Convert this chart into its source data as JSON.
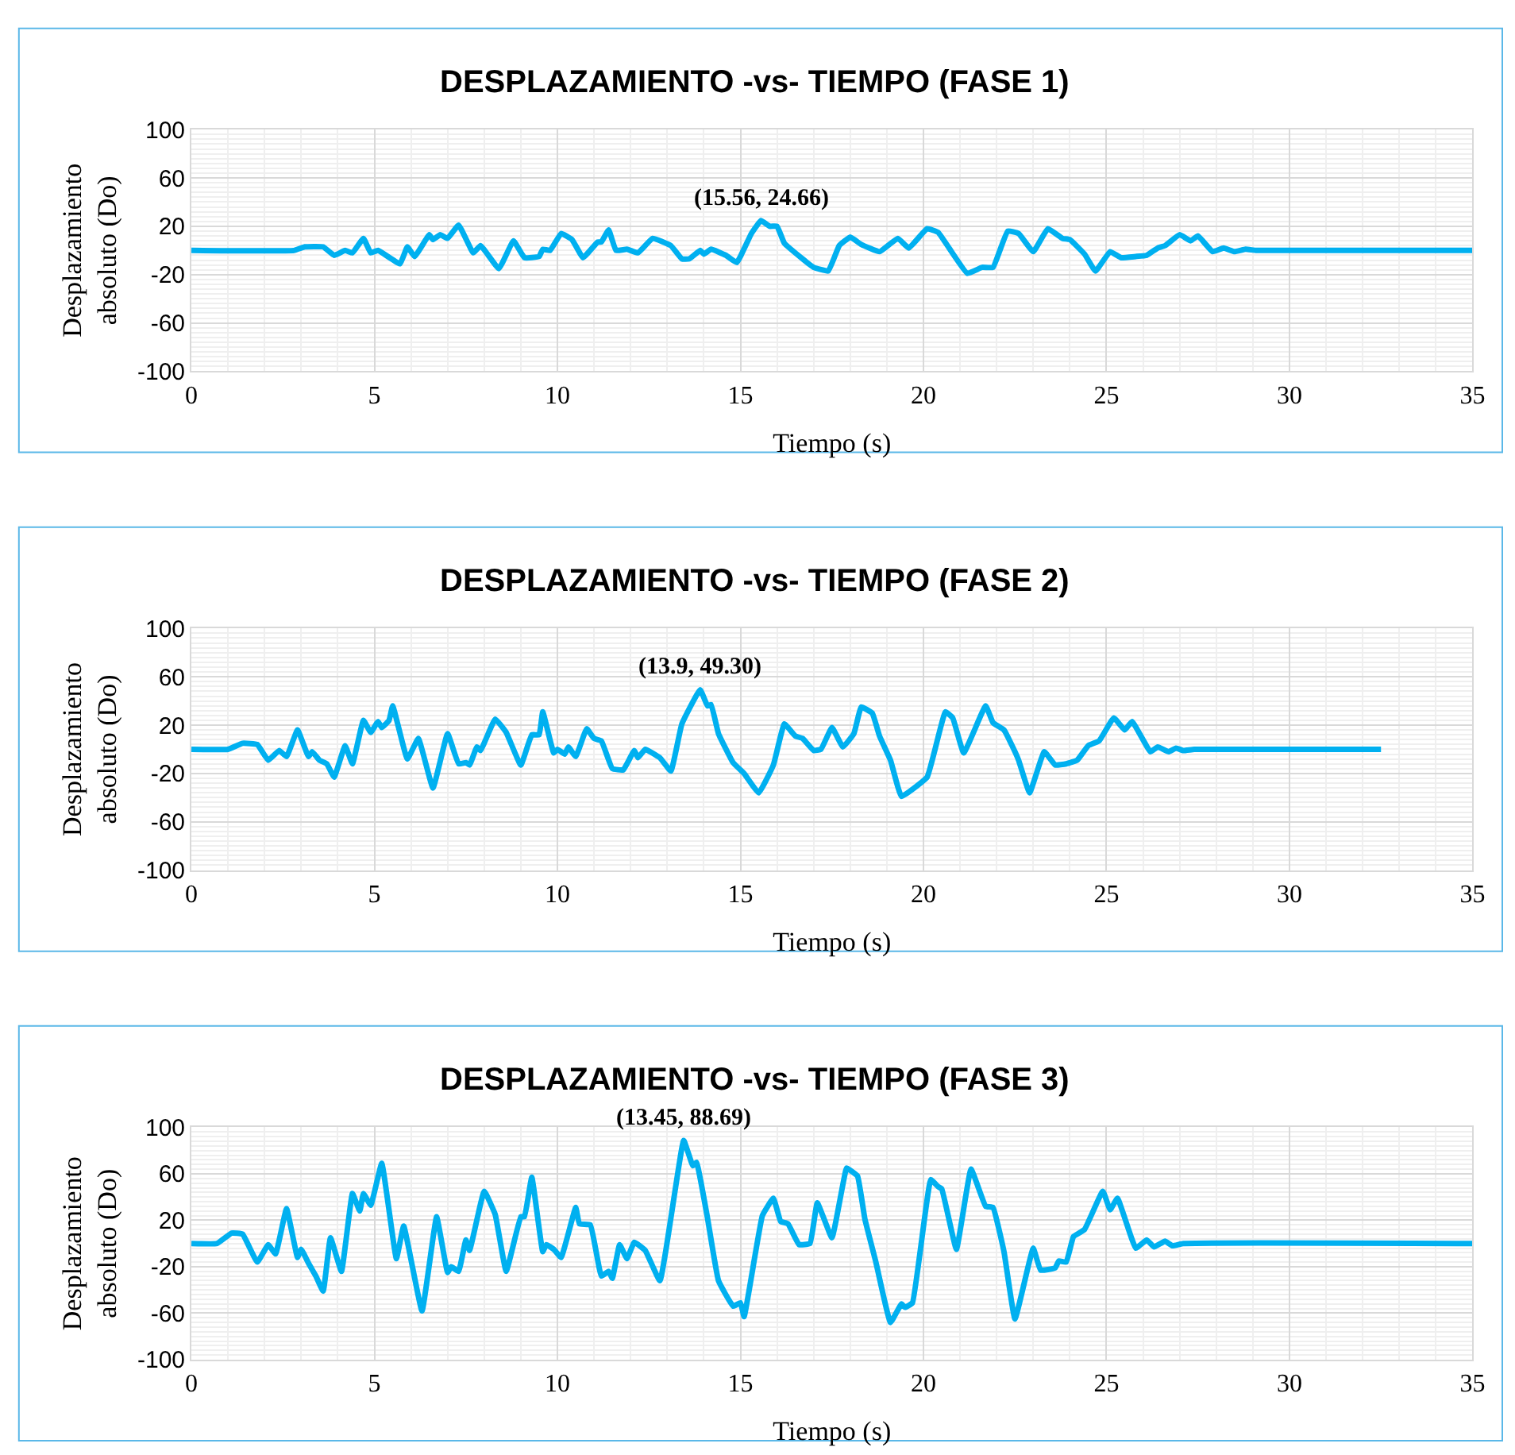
{
  "chart_data": [
    {
      "type": "line",
      "title": "DESPLAZAMIENTO -vs- TIEMPO (FASE 1)",
      "xlabel": "Tiempo (s)",
      "ylabel": "Desplazamiento absoluto (Do)",
      "xlim": [
        0,
        35
      ],
      "xticks": [
        0,
        5,
        10,
        15,
        20,
        25,
        30,
        35
      ],
      "ylim": [
        -100,
        100
      ],
      "yticks": [
        100,
        60,
        20,
        -20,
        -60,
        -100
      ],
      "grid": true,
      "marker": "none",
      "line_style": "solid",
      "annotations": [
        {
          "text": "(15.56, 24.66)",
          "x": 15.56,
          "y": 24.66
        }
      ],
      "series": [
        {
          "color": "#00b0f0",
          "x": [
            0,
            2.8,
            3.1,
            3.6,
            3.9,
            4.2,
            4.4,
            4.7,
            4.9,
            5.1,
            5.7,
            5.9,
            6.1,
            6.5,
            6.6,
            6.8,
            7.0,
            7.3,
            7.7,
            7.9,
            8.4,
            8.8,
            9.1,
            9.5,
            9.6,
            9.8,
            10.1,
            10.4,
            10.7,
            11.1,
            11.2,
            11.4,
            11.6,
            11.9,
            12.2,
            12.6,
            13.1,
            13.4,
            13.6,
            13.9,
            14.0,
            14.2,
            14.6,
            14.9,
            15.3,
            15.56,
            15.8,
            16.0,
            16.2,
            16.7,
            17.0,
            17.4,
            17.7,
            18.0,
            18.3,
            18.8,
            19.3,
            19.6,
            20.1,
            20.4,
            20.7,
            21.2,
            21.6,
            21.9,
            22.3,
            22.6,
            23.0,
            23.4,
            23.8,
            24.0,
            24.4,
            24.7,
            25.1,
            25.4,
            25.8,
            26.1,
            26.4,
            26.6,
            27.0,
            27.3,
            27.5,
            27.9,
            28.2,
            28.5,
            28.8,
            29.1,
            35
          ],
          "values": [
            0,
            0,
            3,
            3,
            -4,
            0,
            -2,
            10,
            -2,
            0,
            -11,
            3,
            -5,
            13,
            9,
            13,
            10,
            21,
            -2,
            4,
            -15,
            8,
            -6,
            -5,
            1,
            0,
            14,
            9,
            -6,
            7,
            7,
            17,
            0,
            1,
            -2,
            10,
            4,
            -7,
            -7,
            0,
            -3,
            1,
            -4,
            -10,
            14,
            24.66,
            20,
            20,
            6,
            -7,
            -14,
            -17,
            4,
            11,
            5,
            -1,
            10,
            2,
            18,
            15,
            2,
            -19,
            -14,
            -14,
            16,
            14,
            -1,
            18,
            10,
            9,
            -3,
            -17,
            -1,
            -6,
            -5,
            -4,
            2,
            4,
            13,
            8,
            12,
            -1,
            2,
            -1,
            1,
            0,
            0
          ]
        }
      ]
    },
    {
      "type": "line",
      "title": "DESPLAZAMIENTO -vs- TIEMPO (FASE 2)",
      "xlabel": "Tiempo (s)",
      "ylabel": "Desplazamiento absoluto (Do)",
      "xlim": [
        0,
        35
      ],
      "xticks": [
        0,
        5,
        10,
        15,
        20,
        25,
        30,
        35
      ],
      "ylim": [
        -100,
        100
      ],
      "yticks": [
        100,
        60,
        20,
        -20,
        -60,
        -100
      ],
      "grid": true,
      "marker": "none",
      "line_style": "solid",
      "annotations": [
        {
          "text": "(13.9, 49.30)",
          "x": 13.9,
          "y": 49.3
        }
      ],
      "series": [
        {
          "color": "#00b0f0",
          "x": [
            0,
            1.0,
            1.4,
            1.8,
            2.1,
            2.4,
            2.6,
            2.9,
            3.2,
            3.3,
            3.5,
            3.7,
            3.9,
            4.2,
            4.4,
            4.7,
            4.9,
            5.1,
            5.2,
            5.4,
            5.5,
            5.9,
            6.2,
            6.6,
            7.0,
            7.3,
            7.5,
            7.6,
            7.8,
            7.9,
            8.3,
            8.6,
            9.0,
            9.3,
            9.5,
            9.6,
            9.9,
            10.0,
            10.2,
            10.3,
            10.5,
            10.8,
            11.0,
            11.2,
            11.5,
            11.8,
            12.1,
            12.2,
            12.4,
            12.8,
            13.1,
            13.4,
            13.9,
            14.1,
            14.2,
            14.4,
            14.8,
            15.1,
            15.5,
            15.9,
            16.2,
            16.5,
            16.7,
            17.0,
            17.2,
            17.5,
            17.8,
            18.1,
            18.3,
            18.6,
            18.8,
            19.1,
            19.4,
            20.1,
            20.3,
            20.6,
            20.8,
            21.1,
            21.7,
            21.9,
            22.2,
            22.5,
            22.6,
            22.9,
            23.3,
            23.6,
            23.9,
            24.2,
            24.5,
            24.8,
            25.2,
            25.5,
            25.7,
            26.2,
            26.4,
            26.7,
            26.9,
            27.1,
            27.4,
            32.5
          ],
          "values": [
            0,
            0,
            5,
            4,
            -9,
            -1,
            -6,
            16,
            -6,
            -2,
            -9,
            -12,
            -23,
            3,
            -12,
            24,
            14,
            23,
            18,
            24,
            36,
            -8,
            9,
            -32,
            13,
            -12,
            -11,
            -13,
            2,
            -1,
            25,
            14,
            -13,
            12,
            12,
            31,
            -3,
            0,
            -4,
            2,
            -6,
            17,
            9,
            7,
            -16,
            -17,
            -1,
            -7,
            0,
            -7,
            -18,
            21,
            49.3,
            36,
            37,
            13,
            -11,
            -20,
            -36,
            -13,
            21,
            11,
            9,
            -1,
            0,
            18,
            2,
            13,
            35,
            30,
            11,
            -9,
            -39,
            -23,
            -2,
            31,
            26,
            -3,
            36,
            22,
            16,
            -2,
            -9,
            -36,
            -2,
            -13,
            -12,
            -9,
            3,
            7,
            26,
            16,
            23,
            -2,
            2,
            -2,
            1,
            -1,
            0,
            0
          ]
        }
      ]
    },
    {
      "type": "line",
      "title": "DESPLAZAMIENTO -vs- TIEMPO (FASE 3)",
      "xlabel": "Tiempo (s)",
      "ylabel": "Desplazamiento absoluto (Do)",
      "xlim": [
        0,
        35
      ],
      "xticks": [
        0,
        5,
        10,
        15,
        20,
        25,
        30,
        35
      ],
      "ylim": [
        -100,
        100
      ],
      "yticks": [
        100,
        60,
        20,
        -20,
        -60,
        -100
      ],
      "grid": true,
      "marker": "none",
      "line_style": "solid",
      "annotations": [
        {
          "text": "(13.45, 88.69)",
          "x": 13.45,
          "y": 88.69
        }
      ],
      "series": [
        {
          "color": "#00b0f0",
          "x": [
            0,
            0.7,
            1.1,
            1.4,
            1.8,
            2.1,
            2.3,
            2.6,
            2.9,
            3.0,
            3.2,
            3.4,
            3.6,
            3.8,
            4.1,
            4.4,
            4.6,
            4.7,
            4.9,
            5.2,
            5.6,
            5.8,
            6.3,
            6.7,
            7.0,
            7.1,
            7.3,
            7.5,
            7.6,
            8.0,
            8.3,
            8.6,
            9.0,
            9.1,
            9.3,
            9.6,
            9.7,
            9.9,
            10.1,
            10.5,
            10.6,
            10.9,
            11.2,
            11.4,
            11.5,
            11.7,
            11.9,
            12.1,
            12.4,
            12.8,
            13.45,
            13.7,
            13.8,
            14.1,
            14.4,
            14.8,
            15.0,
            15.1,
            15.6,
            15.9,
            16.1,
            16.3,
            16.6,
            16.9,
            17.1,
            17.5,
            17.9,
            18.0,
            18.2,
            18.4,
            18.7,
            19.1,
            19.4,
            19.5,
            19.7,
            20.2,
            20.4,
            20.5,
            20.9,
            21.3,
            21.7,
            21.9,
            22.2,
            22.5,
            23.0,
            23.2,
            23.6,
            23.7,
            23.9,
            24.1,
            24.4,
            24.9,
            25.1,
            25.3,
            25.8,
            26.1,
            26.3,
            26.6,
            26.8,
            27.1,
            35
          ],
          "values": [
            0,
            0,
            9,
            8,
            -16,
            -1,
            -9,
            30,
            -12,
            -5,
            -17,
            -28,
            -41,
            5,
            -24,
            43,
            28,
            43,
            33,
            69,
            -13,
            15,
            -58,
            23,
            -25,
            -20,
            -24,
            3,
            -6,
            45,
            25,
            -24,
            23,
            23,
            57,
            -7,
            -1,
            -5,
            -12,
            31,
            17,
            16,
            -28,
            -24,
            -30,
            -1,
            -13,
            1,
            -6,
            -32,
            88.69,
            67,
            70,
            22,
            -32,
            -54,
            -51,
            -63,
            24,
            39,
            19,
            17,
            -1,
            0,
            35,
            5,
            65,
            63,
            58,
            21,
            -16,
            -68,
            -52,
            -55,
            -51,
            55,
            49,
            47,
            -5,
            64,
            32,
            31,
            -7,
            -65,
            -4,
            -23,
            -21,
            -15,
            -16,
            6,
            12,
            45,
            29,
            39,
            -4,
            3,
            -3,
            2,
            -2,
            0,
            0
          ]
        }
      ]
    }
  ]
}
